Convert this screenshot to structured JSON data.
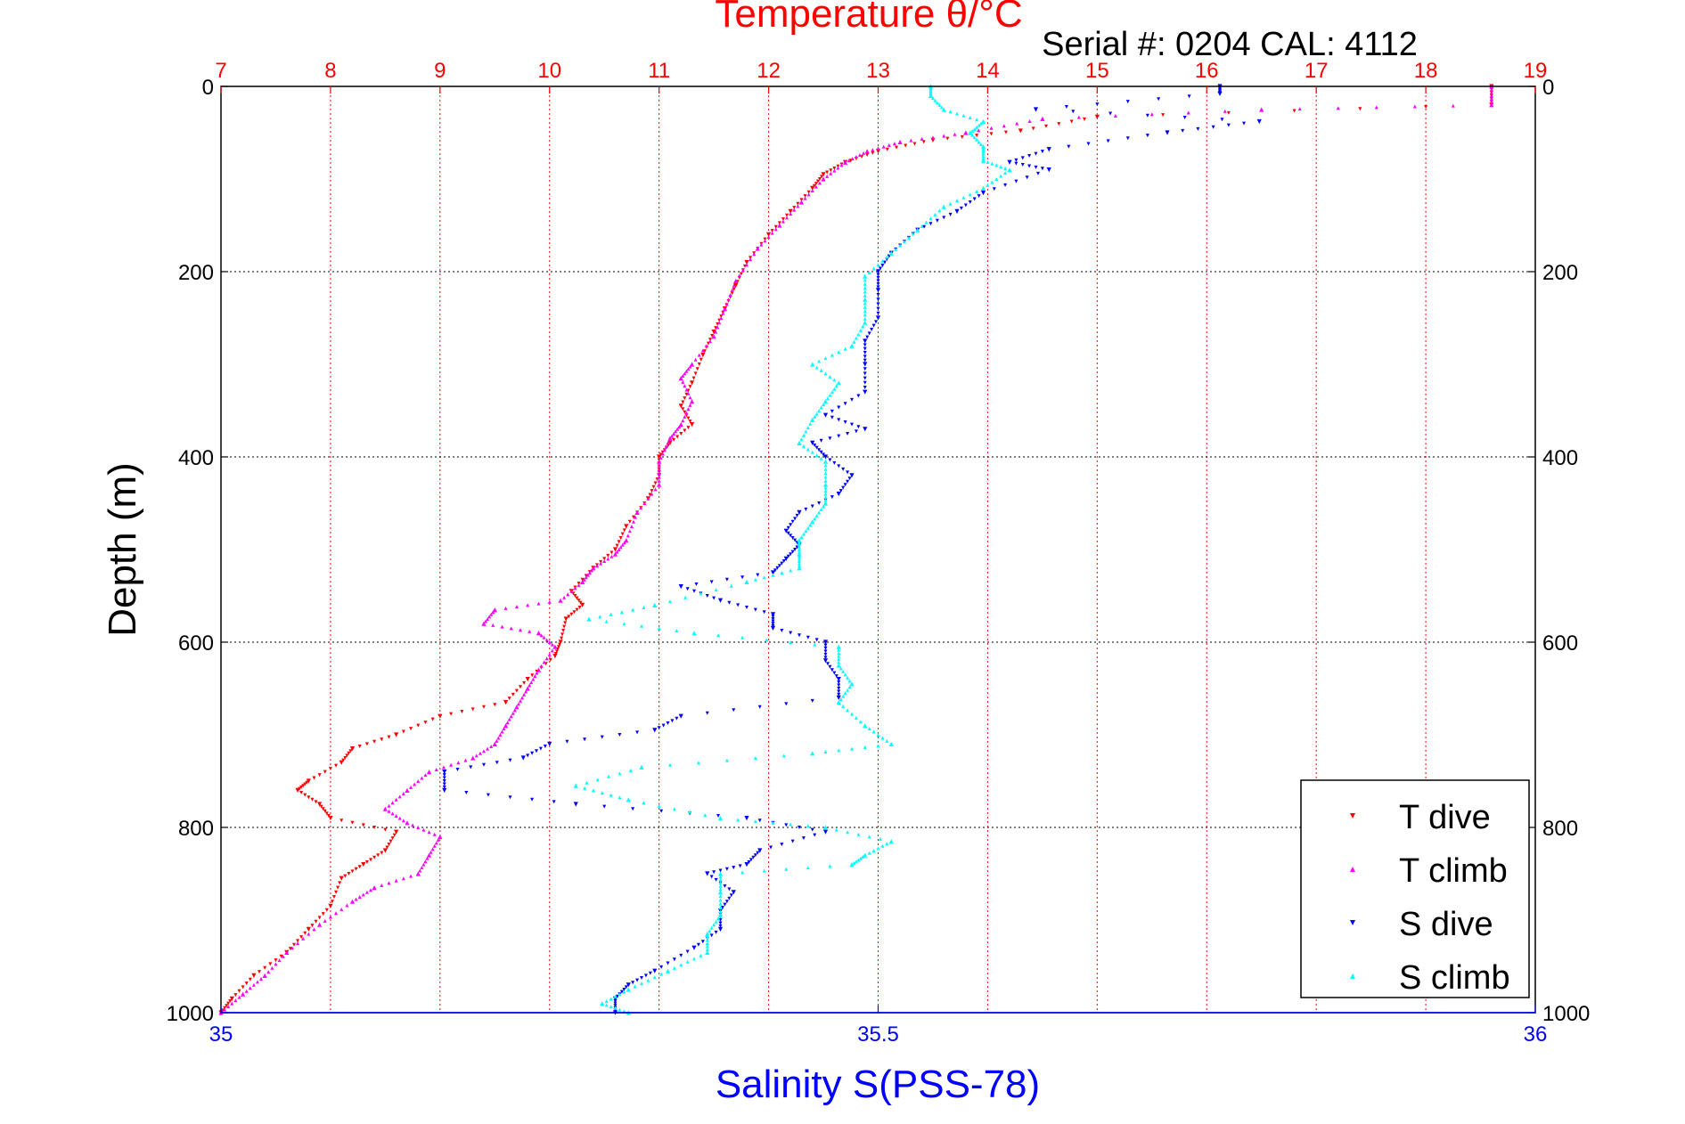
{
  "chart_data": {
    "type": "scatter",
    "title": "Temperature θ/°C",
    "subtitle": "Serial #: 0204  CAL: 4112",
    "ylabel": "Depth (m)",
    "xlabel_bottom": "Salinity S(PSS-78)",
    "y_axis": {
      "lim": [
        0,
        1000
      ],
      "reversed": true,
      "ticks": [
        "0",
        "200",
        "400",
        "600",
        "800",
        "1000"
      ]
    },
    "x_top": {
      "label": "Temperature θ/°C",
      "lim": [
        7,
        19
      ],
      "ticks": [
        "7",
        "8",
        "9",
        "10",
        "11",
        "12",
        "13",
        "14",
        "15",
        "16",
        "17",
        "18",
        "19"
      ],
      "color": "#ff0000"
    },
    "x_bottom": {
      "label": "Salinity S(PSS-78)",
      "lim": [
        35,
        36
      ],
      "ticks": [
        "35",
        "35.5",
        "36"
      ],
      "color": "#0000ff"
    },
    "grid": true,
    "legend": {
      "position": "bottom-right"
    },
    "series": [
      {
        "name": "T dive",
        "axis": "temperature",
        "color": "#ff0000",
        "marker": "triangle-down",
        "points": [
          [
            18.6,
            0
          ],
          [
            18.6,
            20
          ],
          [
            15.0,
            33
          ],
          [
            14.3,
            48
          ],
          [
            13.5,
            58
          ],
          [
            13.0,
            70
          ],
          [
            12.7,
            82
          ],
          [
            12.5,
            95
          ],
          [
            12.4,
            110
          ],
          [
            12.2,
            135
          ],
          [
            12.0,
            160
          ],
          [
            11.8,
            190
          ],
          [
            11.7,
            215
          ],
          [
            11.6,
            240
          ],
          [
            11.5,
            265
          ],
          [
            11.4,
            290
          ],
          [
            11.3,
            320
          ],
          [
            11.2,
            345
          ],
          [
            11.3,
            365
          ],
          [
            11.1,
            385
          ],
          [
            11.0,
            400
          ],
          [
            11.0,
            420
          ],
          [
            10.9,
            445
          ],
          [
            10.7,
            475
          ],
          [
            10.6,
            500
          ],
          [
            10.4,
            520
          ],
          [
            10.2,
            545
          ],
          [
            10.3,
            560
          ],
          [
            10.15,
            575
          ],
          [
            10.1,
            600
          ],
          [
            10.05,
            615
          ],
          [
            9.8,
            640
          ],
          [
            9.6,
            665
          ],
          [
            9.0,
            680
          ],
          [
            8.6,
            700
          ],
          [
            8.2,
            715
          ],
          [
            8.1,
            730
          ],
          [
            7.8,
            750
          ],
          [
            7.7,
            760
          ],
          [
            7.9,
            775
          ],
          [
            8.0,
            790
          ],
          [
            8.6,
            805
          ],
          [
            8.5,
            825
          ],
          [
            8.3,
            840
          ],
          [
            8.1,
            855
          ],
          [
            8.0,
            885
          ],
          [
            7.8,
            910
          ],
          [
            7.6,
            935
          ],
          [
            7.3,
            960
          ],
          [
            7.1,
            985
          ],
          [
            7.0,
            1000
          ]
        ]
      },
      {
        "name": "T climb",
        "axis": "temperature",
        "color": "#ff00ff",
        "marker": "triangle-up",
        "points": [
          [
            18.6,
            0
          ],
          [
            18.6,
            20
          ],
          [
            16.5,
            25
          ],
          [
            14.5,
            35
          ],
          [
            13.8,
            50
          ],
          [
            13.2,
            60
          ],
          [
            12.9,
            70
          ],
          [
            12.7,
            82
          ],
          [
            12.5,
            100
          ],
          [
            12.3,
            125
          ],
          [
            12.1,
            150
          ],
          [
            11.9,
            175
          ],
          [
            11.7,
            210
          ],
          [
            11.6,
            240
          ],
          [
            11.5,
            270
          ],
          [
            11.3,
            300
          ],
          [
            11.2,
            315
          ],
          [
            11.3,
            340
          ],
          [
            11.2,
            365
          ],
          [
            11.1,
            380
          ],
          [
            11.0,
            405
          ],
          [
            11.0,
            430
          ],
          [
            10.8,
            460
          ],
          [
            10.7,
            490
          ],
          [
            10.6,
            505
          ],
          [
            10.4,
            520
          ],
          [
            10.3,
            535
          ],
          [
            10.1,
            555
          ],
          [
            9.5,
            565
          ],
          [
            9.4,
            580
          ],
          [
            9.9,
            590
          ],
          [
            10.05,
            605
          ],
          [
            9.9,
            630
          ],
          [
            9.8,
            650
          ],
          [
            9.7,
            670
          ],
          [
            9.6,
            690
          ],
          [
            9.5,
            710
          ],
          [
            9.3,
            725
          ],
          [
            8.9,
            740
          ],
          [
            8.7,
            760
          ],
          [
            8.5,
            780
          ],
          [
            8.7,
            795
          ],
          [
            9.0,
            810
          ],
          [
            8.9,
            830
          ],
          [
            8.8,
            850
          ],
          [
            8.4,
            865
          ],
          [
            8.2,
            880
          ],
          [
            7.9,
            905
          ],
          [
            7.6,
            935
          ],
          [
            7.4,
            960
          ],
          [
            7.2,
            980
          ],
          [
            7.0,
            1000
          ]
        ]
      },
      {
        "name": "S dive",
        "axis": "salinity",
        "color": "#0000ff",
        "marker": "triangle-down",
        "points": [
          [
            35.76,
            0
          ],
          [
            35.76,
            8
          ],
          [
            35.62,
            25
          ],
          [
            35.79,
            38
          ],
          [
            35.72,
            50
          ],
          [
            35.63,
            68
          ],
          [
            35.6,
            82
          ],
          [
            35.63,
            90
          ],
          [
            35.58,
            115
          ],
          [
            35.56,
            135
          ],
          [
            35.53,
            155
          ],
          [
            35.51,
            180
          ],
          [
            35.5,
            200
          ],
          [
            35.5,
            220
          ],
          [
            35.5,
            250
          ],
          [
            35.49,
            275
          ],
          [
            35.49,
            300
          ],
          [
            35.49,
            330
          ],
          [
            35.46,
            355
          ],
          [
            35.49,
            370
          ],
          [
            35.45,
            385
          ],
          [
            35.46,
            400
          ],
          [
            35.48,
            420
          ],
          [
            35.47,
            440
          ],
          [
            35.44,
            460
          ],
          [
            35.43,
            480
          ],
          [
            35.44,
            495
          ],
          [
            35.43,
            510
          ],
          [
            35.42,
            525
          ],
          [
            35.35,
            540
          ],
          [
            35.38,
            555
          ],
          [
            35.42,
            570
          ],
          [
            35.42,
            585
          ],
          [
            35.46,
            600
          ],
          [
            35.46,
            620
          ],
          [
            35.47,
            640
          ],
          [
            35.47,
            660
          ],
          [
            35.35,
            680
          ],
          [
            35.33,
            695
          ],
          [
            35.25,
            710
          ],
          [
            35.23,
            725
          ],
          [
            35.17,
            740
          ],
          [
            35.17,
            760
          ],
          [
            35.27,
            775
          ],
          [
            35.4,
            790
          ],
          [
            35.46,
            805
          ],
          [
            35.41,
            825
          ],
          [
            35.4,
            840
          ],
          [
            35.37,
            850
          ],
          [
            35.39,
            870
          ],
          [
            35.38,
            890
          ],
          [
            35.38,
            910
          ],
          [
            35.36,
            930
          ],
          [
            35.33,
            955
          ],
          [
            35.31,
            970
          ],
          [
            35.3,
            985
          ],
          [
            35.3,
            1000
          ]
        ]
      },
      {
        "name": "S climb",
        "axis": "salinity",
        "color": "#00ffff",
        "marker": "triangle-up",
        "points": [
          [
            35.54,
            0
          ],
          [
            35.54,
            10
          ],
          [
            35.55,
            25
          ],
          [
            35.58,
            38
          ],
          [
            35.57,
            50
          ],
          [
            35.58,
            65
          ],
          [
            35.58,
            80
          ],
          [
            35.6,
            90
          ],
          [
            35.58,
            110
          ],
          [
            35.55,
            130
          ],
          [
            35.53,
            155
          ],
          [
            35.51,
            180
          ],
          [
            35.49,
            205
          ],
          [
            35.49,
            230
          ],
          [
            35.49,
            255
          ],
          [
            35.48,
            280
          ],
          [
            35.45,
            300
          ],
          [
            35.47,
            320
          ],
          [
            35.46,
            340
          ],
          [
            35.45,
            360
          ],
          [
            35.44,
            385
          ],
          [
            35.46,
            405
          ],
          [
            35.46,
            430
          ],
          [
            35.46,
            450
          ],
          [
            35.45,
            470
          ],
          [
            35.44,
            490
          ],
          [
            35.44,
            505
          ],
          [
            35.44,
            520
          ],
          [
            35.4,
            535
          ],
          [
            35.33,
            560
          ],
          [
            35.28,
            575
          ],
          [
            35.36,
            590
          ],
          [
            35.47,
            605
          ],
          [
            35.47,
            625
          ],
          [
            35.48,
            645
          ],
          [
            35.47,
            665
          ],
          [
            35.49,
            690
          ],
          [
            35.51,
            710
          ],
          [
            35.45,
            720
          ],
          [
            35.32,
            735
          ],
          [
            35.27,
            755
          ],
          [
            35.31,
            770
          ],
          [
            35.38,
            790
          ],
          [
            35.46,
            800
          ],
          [
            35.51,
            815
          ],
          [
            35.49,
            830
          ],
          [
            35.48,
            840
          ],
          [
            35.38,
            850
          ],
          [
            35.38,
            870
          ],
          [
            35.38,
            895
          ],
          [
            35.37,
            915
          ],
          [
            35.37,
            935
          ],
          [
            35.34,
            955
          ],
          [
            35.31,
            975
          ],
          [
            35.29,
            990
          ],
          [
            35.31,
            1000
          ]
        ]
      }
    ]
  }
}
